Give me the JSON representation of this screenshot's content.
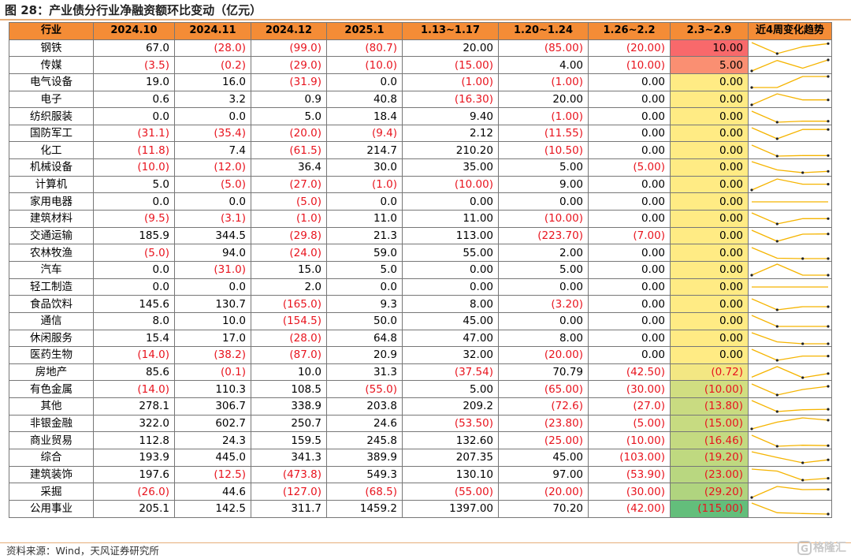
{
  "title": "图 28：产业债分行业净融资额环比变动（亿元）",
  "source": "资料来源：Wind，天风证券研究所",
  "watermark": "格隆汇",
  "colors": {
    "header_bg": "#f48c36",
    "negative_text": "#e8141e",
    "sparkline": "#f5b400",
    "heat_low": "#63be7b",
    "heat_mid": "#ffeb84",
    "heat_high": "#f8696b"
  },
  "headers": [
    "行业",
    "2024.10",
    "2024.11",
    "2024.12",
    "2025.1",
    "1.13~1.17",
    "1.20~1.24",
    "1.26~2.2",
    "2.3~2.9",
    "近4周变化趋势"
  ],
  "rows": [
    {
      "industry": "钢铁",
      "values": [
        "67.0",
        "(28.0)",
        "(99.0)",
        "(80.7)",
        "20.00",
        "(85.00)",
        "(20.00)",
        "10.00"
      ],
      "weekly": [
        20.0,
        -85.0,
        -20.0,
        10.0
      ]
    },
    {
      "industry": "传媒",
      "values": [
        "(3.5)",
        "(0.2)",
        "(29.0)",
        "(10.0)",
        "(15.00)",
        "4.00",
        "(10.00)",
        "5.00"
      ],
      "weekly": [
        -15.0,
        4.0,
        -10.0,
        5.0
      ]
    },
    {
      "industry": "电气设备",
      "values": [
        "19.0",
        "16.0",
        "(31.9)",
        "0.0",
        "(1.00)",
        "(1.00)",
        "0.00",
        "0.00"
      ],
      "weekly": [
        -1.0,
        -1.0,
        0.0,
        0.0
      ]
    },
    {
      "industry": "电子",
      "values": [
        "0.6",
        "3.2",
        "0.9",
        "40.8",
        "(16.30)",
        "20.00",
        "0.00",
        "0.00"
      ],
      "weekly": [
        -16.3,
        20.0,
        0.0,
        0.0
      ]
    },
    {
      "industry": "纺织服装",
      "values": [
        "0.0",
        "0.0",
        "5.0",
        "18.4",
        "9.40",
        "(1.00)",
        "0.00",
        "0.00"
      ],
      "weekly": [
        9.4,
        -1.0,
        0.0,
        0.0
      ]
    },
    {
      "industry": "国防军工",
      "values": [
        "(31.1)",
        "(35.4)",
        "(20.0)",
        "(9.4)",
        "2.12",
        "(11.55)",
        "0.00",
        "0.00"
      ],
      "weekly": [
        2.12,
        -11.55,
        0.0,
        0.0
      ]
    },
    {
      "industry": "化工",
      "values": [
        "(11.8)",
        "7.4",
        "(61.5)",
        "214.7",
        "210.20",
        "(10.50)",
        "0.00",
        "0.00"
      ],
      "weekly": [
        210.2,
        -10.5,
        0.0,
        0.0
      ]
    },
    {
      "industry": "机械设备",
      "values": [
        "(10.0)",
        "(12.0)",
        "36.4",
        "30.0",
        "35.00",
        "5.00",
        "(5.00)",
        "0.00"
      ],
      "weekly": [
        35.0,
        5.0,
        -5.0,
        0.0
      ]
    },
    {
      "industry": "计算机",
      "values": [
        "5.0",
        "(5.0)",
        "(27.0)",
        "(1.0)",
        "(10.00)",
        "9.00",
        "0.00",
        "0.00"
      ],
      "weekly": [
        -10.0,
        9.0,
        0.0,
        0.0
      ]
    },
    {
      "industry": "家用电器",
      "values": [
        "0.0",
        "0.0",
        "(5.0)",
        "0.0",
        "0.00",
        "0.00",
        "0.00",
        "0.00"
      ],
      "weekly": [
        0.0,
        0.0,
        0.0,
        0.0
      ]
    },
    {
      "industry": "建筑材料",
      "values": [
        "(9.5)",
        "(3.1)",
        "(1.0)",
        "11.0",
        "11.00",
        "(10.00)",
        "0.00",
        "0.00"
      ],
      "weekly": [
        11.0,
        -10.0,
        0.0,
        0.0
      ]
    },
    {
      "industry": "交通运输",
      "values": [
        "185.9",
        "344.5",
        "(29.8)",
        "21.3",
        "113.00",
        "(223.70)",
        "(7.00)",
        "0.00"
      ],
      "weekly": [
        113.0,
        -223.7,
        -7.0,
        0.0
      ]
    },
    {
      "industry": "农林牧渔",
      "values": [
        "(5.0)",
        "94.0",
        "(24.0)",
        "59.0",
        "55.00",
        "2.00",
        "0.00",
        "0.00"
      ],
      "weekly": [
        55.0,
        2.0,
        0.0,
        0.0
      ]
    },
    {
      "industry": "汽车",
      "values": [
        "0.0",
        "(31.0)",
        "15.0",
        "5.0",
        "0.00",
        "5.00",
        "0.00",
        "0.00"
      ],
      "weekly": [
        0.0,
        5.0,
        0.0,
        0.0
      ]
    },
    {
      "industry": "轻工制造",
      "values": [
        "0.0",
        "0.0",
        "2.0",
        "0.0",
        "0.00",
        "0.00",
        "0.00",
        "0.00"
      ],
      "weekly": [
        0.0,
        0.0,
        0.0,
        0.0
      ]
    },
    {
      "industry": "食品饮料",
      "values": [
        "145.6",
        "130.7",
        "(165.0)",
        "9.3",
        "8.00",
        "(3.20)",
        "0.00",
        "0.00"
      ],
      "weekly": [
        8.0,
        -3.2,
        0.0,
        0.0
      ]
    },
    {
      "industry": "通信",
      "values": [
        "8.0",
        "10.0",
        "(154.5)",
        "50.0",
        "45.00",
        "0.00",
        "0.00",
        "0.00"
      ],
      "weekly": [
        45.0,
        0.0,
        0.0,
        0.0
      ]
    },
    {
      "industry": "休闲服务",
      "values": [
        "15.4",
        "17.0",
        "(28.0)",
        "64.8",
        "47.00",
        "8.00",
        "0.00",
        "0.00"
      ],
      "weekly": [
        47.0,
        8.0,
        0.0,
        0.0
      ]
    },
    {
      "industry": "医药生物",
      "values": [
        "(14.0)",
        "(38.2)",
        "(87.0)",
        "20.9",
        "32.00",
        "(20.00)",
        "0.00",
        "0.00"
      ],
      "weekly": [
        32.0,
        -20.0,
        0.0,
        0.0
      ]
    },
    {
      "industry": "房地产",
      "values": [
        "85.6",
        "(0.1)",
        "10.0",
        "31.3",
        "(37.54)",
        "70.79",
        "(42.50)",
        "(0.72)"
      ],
      "weekly": [
        -37.54,
        70.79,
        -42.5,
        -0.72
      ]
    },
    {
      "industry": "有色金属",
      "values": [
        "(14.0)",
        "110.3",
        "108.5",
        "(55.0)",
        "5.00",
        "(65.00)",
        "(30.00)",
        "(10.00)"
      ],
      "weekly": [
        5.0,
        -65.0,
        -30.0,
        -10.0
      ]
    },
    {
      "industry": "其他",
      "values": [
        "278.1",
        "306.7",
        "338.9",
        "203.8",
        "209.2",
        "(72.6)",
        "(27.0)",
        "(13.80)"
      ],
      "weekly": [
        209.2,
        -72.6,
        -27.0,
        -13.8
      ]
    },
    {
      "industry": "非银金融",
      "values": [
        "322.0",
        "602.7",
        "250.7",
        "24.6",
        "(53.50)",
        "(23.80)",
        "(5.00)",
        "(15.00)"
      ],
      "weekly": [
        -53.5,
        -23.8,
        -5.0,
        -15.0
      ]
    },
    {
      "industry": "商业贸易",
      "values": [
        "112.8",
        "24.3",
        "159.5",
        "245.8",
        "132.60",
        "(25.00)",
        "(10.00)",
        "(16.46)"
      ],
      "weekly": [
        132.6,
        -25.0,
        -10.0,
        -16.46
      ]
    },
    {
      "industry": "综合",
      "values": [
        "193.9",
        "445.0",
        "341.3",
        "389.9",
        "207.35",
        "45.00",
        "(103.00)",
        "(19.20)"
      ],
      "weekly": [
        207.35,
        45.0,
        -103.0,
        -19.2
      ]
    },
    {
      "industry": "建筑装饰",
      "values": [
        "197.6",
        "(12.5)",
        "(473.8)",
        "549.3",
        "130.10",
        "97.00",
        "(53.90)",
        "(23.00)"
      ],
      "weekly": [
        130.1,
        97.0,
        -53.9,
        -23.0
      ]
    },
    {
      "industry": "采掘",
      "values": [
        "(26.0)",
        "44.6",
        "(127.0)",
        "(68.5)",
        "(55.00)",
        "(20.00)",
        "(30.00)",
        "(29.20)"
      ],
      "weekly": [
        -55.0,
        -20.0,
        -30.0,
        -29.2
      ]
    },
    {
      "industry": "公用事业",
      "values": [
        "205.1",
        "142.5",
        "311.7",
        "1459.2",
        "1397.00",
        "70.20",
        "(42.00)",
        "(115.00)"
      ],
      "weekly": [
        1397.0,
        70.2,
        -42.0,
        -115.0
      ]
    }
  ]
}
